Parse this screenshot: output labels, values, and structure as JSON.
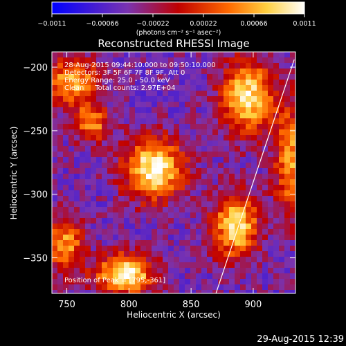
{
  "chart_data": {
    "type": "heatmap",
    "title": "Reconstructed RHESSI Image",
    "xlabel": "Heliocentric X (arcsec)",
    "ylabel": "Heliocentric Y (arcsec)",
    "xlim": [
      738,
      934
    ],
    "ylim": [
      -378,
      -188
    ],
    "x_ticks": [
      "750",
      "800",
      "850",
      "900"
    ],
    "x_tick_values": [
      750,
      800,
      850,
      900
    ],
    "y_ticks": [
      "-200",
      "-250",
      "-300",
      "-350"
    ],
    "y_tick_values": [
      -200,
      -250,
      -300,
      -350
    ],
    "colorbar": {
      "ticks": [
        "-0.0011",
        "-0.00066",
        "-0.00022",
        "0.00022",
        "0.00066",
        "0.0011"
      ],
      "tick_values": [
        -0.0011,
        -0.00066,
        -0.00022,
        0.00022,
        0.00066,
        0.0011
      ],
      "min": -0.0011,
      "max": 0.0011,
      "units_label": "(photons cm⁻² s⁻¹ asec⁻²)",
      "colors": [
        "#0000ff",
        "#7a33b0",
        "#c00000",
        "#ff6a00",
        "#ffd040",
        "#ffffff"
      ]
    },
    "annotations": {
      "time_range": "28-Aug-2015 09:44:10.000 to 09:50:10.000",
      "detectors": "Detectors: 3F 5F 6F 7F 8F 9F, Att 0",
      "energy_range": "Energy Range: 25.0 - 50.0 keV",
      "clean_counts": "Clean     Total counts: 2.97E+04",
      "peak_position": "Position of Peak = [795,-361]"
    },
    "limb_line": {
      "x": [
        870,
        933
      ],
      "y": [
        -378,
        -194
      ]
    },
    "sources": [
      {
        "x": 820,
        "y": -280,
        "amplitude": 0.00105,
        "sigma_x": 17,
        "sigma_y": 17
      },
      {
        "x": 896,
        "y": -224,
        "amplitude": 0.00095,
        "sigma_x": 15,
        "sigma_y": 20
      },
      {
        "x": 886,
        "y": -325,
        "amplitude": 0.0009,
        "sigma_x": 13,
        "sigma_y": 18
      },
      {
        "x": 797,
        "y": -363,
        "amplitude": 0.0011,
        "sigma_x": 16,
        "sigma_y": 11
      },
      {
        "x": 755,
        "y": -212,
        "amplitude": 0.0007,
        "sigma_x": 15,
        "sigma_y": 14
      },
      {
        "x": 748,
        "y": -340,
        "amplitude": 0.0006,
        "sigma_x": 11,
        "sigma_y": 16
      },
      {
        "x": 930,
        "y": -275,
        "amplitude": 0.0006,
        "sigma_x": 9,
        "sigma_y": 30
      },
      {
        "x": 770,
        "y": -245,
        "amplitude": 0.0005,
        "sigma_x": 10,
        "sigma_y": 10
      }
    ],
    "background_level": -0.00045
  },
  "footer": {
    "timestamp": "29-Aug-2015 12:39"
  }
}
